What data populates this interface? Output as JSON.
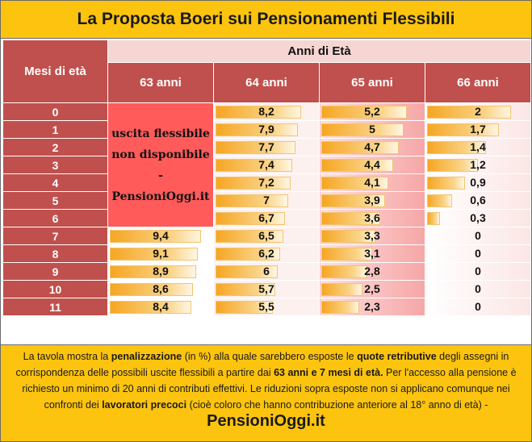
{
  "title": "La Proposta Boeri sui Pensionamenti Flessibili",
  "table": {
    "months_header": "Mesi di età",
    "years_header": "Anni di Età",
    "age_columns": [
      "63 anni",
      "64 anni",
      "65 anni",
      "66 anni"
    ],
    "not_available_label": [
      "uscita flessibile",
      "non disponibile -",
      "PensioniOggi.it"
    ],
    "rows": [
      {
        "month": "0",
        "v63": null,
        "v64": "8,2",
        "v65": "5,2",
        "v66": "2"
      },
      {
        "month": "1",
        "v63": null,
        "v64": "7,9",
        "v65": "5",
        "v66": "1,7"
      },
      {
        "month": "2",
        "v63": null,
        "v64": "7,7",
        "v65": "4,7",
        "v66": "1,4"
      },
      {
        "month": "3",
        "v63": null,
        "v64": "7,4",
        "v65": "4,4",
        "v66": "1,2"
      },
      {
        "month": "4",
        "v63": null,
        "v64": "7,2",
        "v65": "4,1",
        "v66": "0,9"
      },
      {
        "month": "5",
        "v63": null,
        "v64": "7",
        "v65": "3,9",
        "v66": "0,6"
      },
      {
        "month": "6",
        "v63": null,
        "v64": "6,7",
        "v65": "3,6",
        "v66": "0,3"
      },
      {
        "month": "7",
        "v63": "9,4",
        "v64": "6,5",
        "v65": "3,3",
        "v66": "0"
      },
      {
        "month": "8",
        "v63": "9,1",
        "v64": "6,2",
        "v65": "3,1",
        "v66": "0"
      },
      {
        "month": "9",
        "v63": "8,9",
        "v64": "6",
        "v65": "2,8",
        "v66": "0"
      },
      {
        "month": "10",
        "v63": "8,6",
        "v64": "5,7",
        "v65": "2,5",
        "v66": "0"
      },
      {
        "month": "11",
        "v63": "8,4",
        "v64": "5,5",
        "v65": "2,3",
        "v66": "0"
      }
    ]
  },
  "footer": {
    "p1": "La tavola mostra la ",
    "b1": "penalizzazione",
    "p2": " (in %) alla quale sarebbero esposte le ",
    "b2": "quote retributive",
    "p3": " degli assegni in corrispondenza delle possibili uscite flessibili a partire dai ",
    "b3": "63 anni e 7 mesi di età.",
    "p4": " Per l'accesso alla pensione è richiesto un minimo di 20 anni di contributi effettivi. Le riduzioni sopra esposte non si applicano comunque nei confronti dei ",
    "b4": "lavoratori precoci",
    "p5": " (cioè coloro che hanno contribuzione anteriore al 18° anno di età) - ",
    "brand": "PensioniOggi.it"
  }
}
